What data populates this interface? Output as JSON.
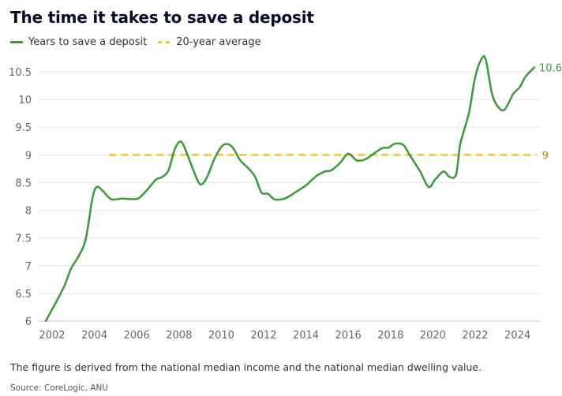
{
  "chart_data": {
    "type": "line",
    "title": "The time it takes to save a deposit",
    "xlabel": "",
    "ylabel": "",
    "xlim": [
      2001.3,
      2025.1
    ],
    "ylim": [
      6,
      10.5
    ],
    "grid": true,
    "legend_position": "top-left",
    "x_ticks": [
      "2002",
      "2004",
      "2006",
      "2008",
      "2010",
      "2012",
      "2014",
      "2016",
      "2018",
      "2020",
      "2022",
      "2024"
    ],
    "y_ticks": [
      "6",
      "6.5",
      "7",
      "7.5",
      "8",
      "8.5",
      "9",
      "9.5",
      "10",
      "10.5"
    ],
    "series": [
      {
        "name": "Years to save a deposit",
        "color": "#3a9a3a",
        "end_label": "10.6",
        "points": [
          [
            2001.7,
            6.0
          ],
          [
            2002.2,
            6.35
          ],
          [
            2002.6,
            6.65
          ],
          [
            2002.9,
            6.95
          ],
          [
            2003.3,
            7.2
          ],
          [
            2003.6,
            7.5
          ],
          [
            2003.9,
            8.2
          ],
          [
            2004.1,
            8.42
          ],
          [
            2004.4,
            8.35
          ],
          [
            2004.8,
            8.2
          ],
          [
            2005.3,
            8.21
          ],
          [
            2005.8,
            8.2
          ],
          [
            2006.1,
            8.22
          ],
          [
            2006.5,
            8.37
          ],
          [
            2006.9,
            8.55
          ],
          [
            2007.2,
            8.6
          ],
          [
            2007.5,
            8.72
          ],
          [
            2007.8,
            9.1
          ],
          [
            2008.1,
            9.24
          ],
          [
            2008.4,
            9.0
          ],
          [
            2008.7,
            8.7
          ],
          [
            2009.0,
            8.47
          ],
          [
            2009.3,
            8.58
          ],
          [
            2009.7,
            8.95
          ],
          [
            2010.1,
            9.18
          ],
          [
            2010.5,
            9.15
          ],
          [
            2010.9,
            8.9
          ],
          [
            2011.3,
            8.75
          ],
          [
            2011.6,
            8.6
          ],
          [
            2011.9,
            8.32
          ],
          [
            2012.2,
            8.3
          ],
          [
            2012.5,
            8.2
          ],
          [
            2012.9,
            8.2
          ],
          [
            2013.2,
            8.25
          ],
          [
            2013.6,
            8.35
          ],
          [
            2014.0,
            8.45
          ],
          [
            2014.5,
            8.62
          ],
          [
            2014.9,
            8.7
          ],
          [
            2015.2,
            8.72
          ],
          [
            2015.6,
            8.85
          ],
          [
            2016.0,
            9.02
          ],
          [
            2016.4,
            8.9
          ],
          [
            2016.8,
            8.92
          ],
          [
            2017.2,
            9.02
          ],
          [
            2017.6,
            9.12
          ],
          [
            2017.9,
            9.13
          ],
          [
            2018.2,
            9.2
          ],
          [
            2018.6,
            9.18
          ],
          [
            2018.9,
            9.0
          ],
          [
            2019.4,
            8.7
          ],
          [
            2019.8,
            8.42
          ],
          [
            2020.1,
            8.55
          ],
          [
            2020.5,
            8.7
          ],
          [
            2020.8,
            8.6
          ],
          [
            2021.1,
            8.65
          ],
          [
            2021.3,
            9.2
          ],
          [
            2021.7,
            9.75
          ],
          [
            2022.0,
            10.4
          ],
          [
            2022.3,
            10.73
          ],
          [
            2022.5,
            10.72
          ],
          [
            2022.8,
            10.1
          ],
          [
            2023.1,
            9.86
          ],
          [
            2023.4,
            9.82
          ],
          [
            2023.8,
            10.1
          ],
          [
            2024.1,
            10.22
          ],
          [
            2024.4,
            10.42
          ],
          [
            2024.8,
            10.58
          ]
        ]
      },
      {
        "name": "20-year average",
        "color": "#f5c231",
        "dashed": true,
        "end_label": "9",
        "points": [
          [
            2004.7,
            9.0
          ],
          [
            2024.9,
            9.0
          ]
        ]
      }
    ]
  },
  "note": "The figure is derived from the national median income and the national median dwelling value.",
  "source": "Source: CoreLogic, ANU"
}
